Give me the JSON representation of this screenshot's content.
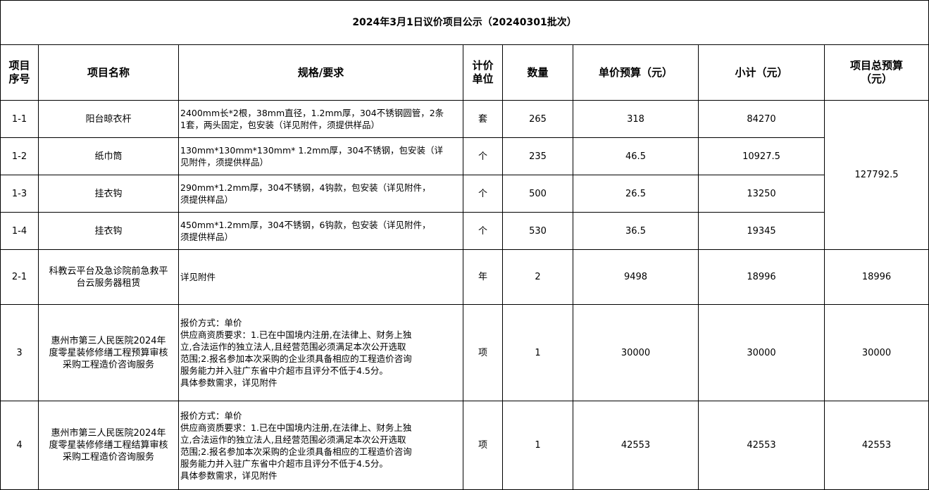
{
  "title": "2024年3月1日议价项目公示（20240301批次）",
  "headers": [
    "项目\n序号",
    "项目名称",
    "规格/要求",
    "计价\n单位",
    "数量",
    "单价预算（元）",
    "小计（元）",
    "项目总预算\n（元）"
  ],
  "rows": [
    {
      "id": "1-1",
      "name": "阳台晾衣杆",
      "spec": "2400mm长*2根，38mm直径，1.2mm厚，304不锈钢圆管，2条\n1套，两头固定，包安装（详见附件，须提供样品）",
      "unit": "套",
      "qty": "265",
      "price": "318",
      "subtotal": "84270"
    },
    {
      "id": "1-2",
      "name": "纸巾筒",
      "spec": "130mm*130mm*130mm* 1.2mm厚，304不锈钢，包安装（详\n见附件，须提供样品）",
      "unit": "个",
      "qty": "235",
      "price": "46.5",
      "subtotal": "10927.5"
    },
    {
      "id": "1-3",
      "name": "挂衣钩",
      "spec": "290mm*1.2mm厚，304不锈钢，4钩款，包安装（详见附件，\n须提供样品）",
      "unit": "个",
      "qty": "500",
      "price": "26.5",
      "subtotal": "13250"
    },
    {
      "id": "1-4",
      "name": "挂衣钩",
      "spec": "450mm*1.2mm厚，304不锈钢，6钩款，包安装（详见附件，\n须提供样品）",
      "unit": "个",
      "qty": "530",
      "price": "36.5",
      "subtotal": "19345"
    },
    {
      "id": "2-1",
      "name": "科教云平台及急诊院前急救平\n台云服务器租赁",
      "spec": "详见附件",
      "unit": "年",
      "qty": "2",
      "price": "9498",
      "subtotal": "18996",
      "total": "18996"
    },
    {
      "id": "3",
      "name": "惠州市第三人民医院2024年\n度零星装修修缮工程预算审核\n采购工程造价咨询服务",
      "spec": "报价方式：单价\n供应商资质要求：1.已在中国境内注册,在法律上、财务上独\n立,合法运作的独立法人,且经营范围必须满足本次公开选取\n范围;2.报名参加本次采购的企业须具备相应的工程造价咨询\n服务能力并入驻广东省中介超市且评分不低于4.5分。\n具体参数需求，详见附件",
      "unit": "项",
      "qty": "1",
      "price": "30000",
      "subtotal": "30000",
      "total": "30000"
    },
    {
      "id": "4",
      "name": "惠州市第三人民医院2024年\n度零星装修修缮工程结算审核\n采购工程造价咨询服务",
      "spec": "报价方式：单价\n供应商资质要求：1.已在中国境内注册,在法律上、财务上独\n立,合法运作的独立法人,且经营范围必须满足本次公开选取\n范围;2.报名参加本次采购的企业须具备相应的工程造价咨询\n服务能力并入驻广东省中介超市且评分不低于4.5分。\n具体参数需求，详见附件",
      "unit": "项",
      "qty": "1",
      "price": "42553",
      "subtotal": "42553",
      "total": "42553"
    }
  ],
  "group1_total": "127792.5"
}
